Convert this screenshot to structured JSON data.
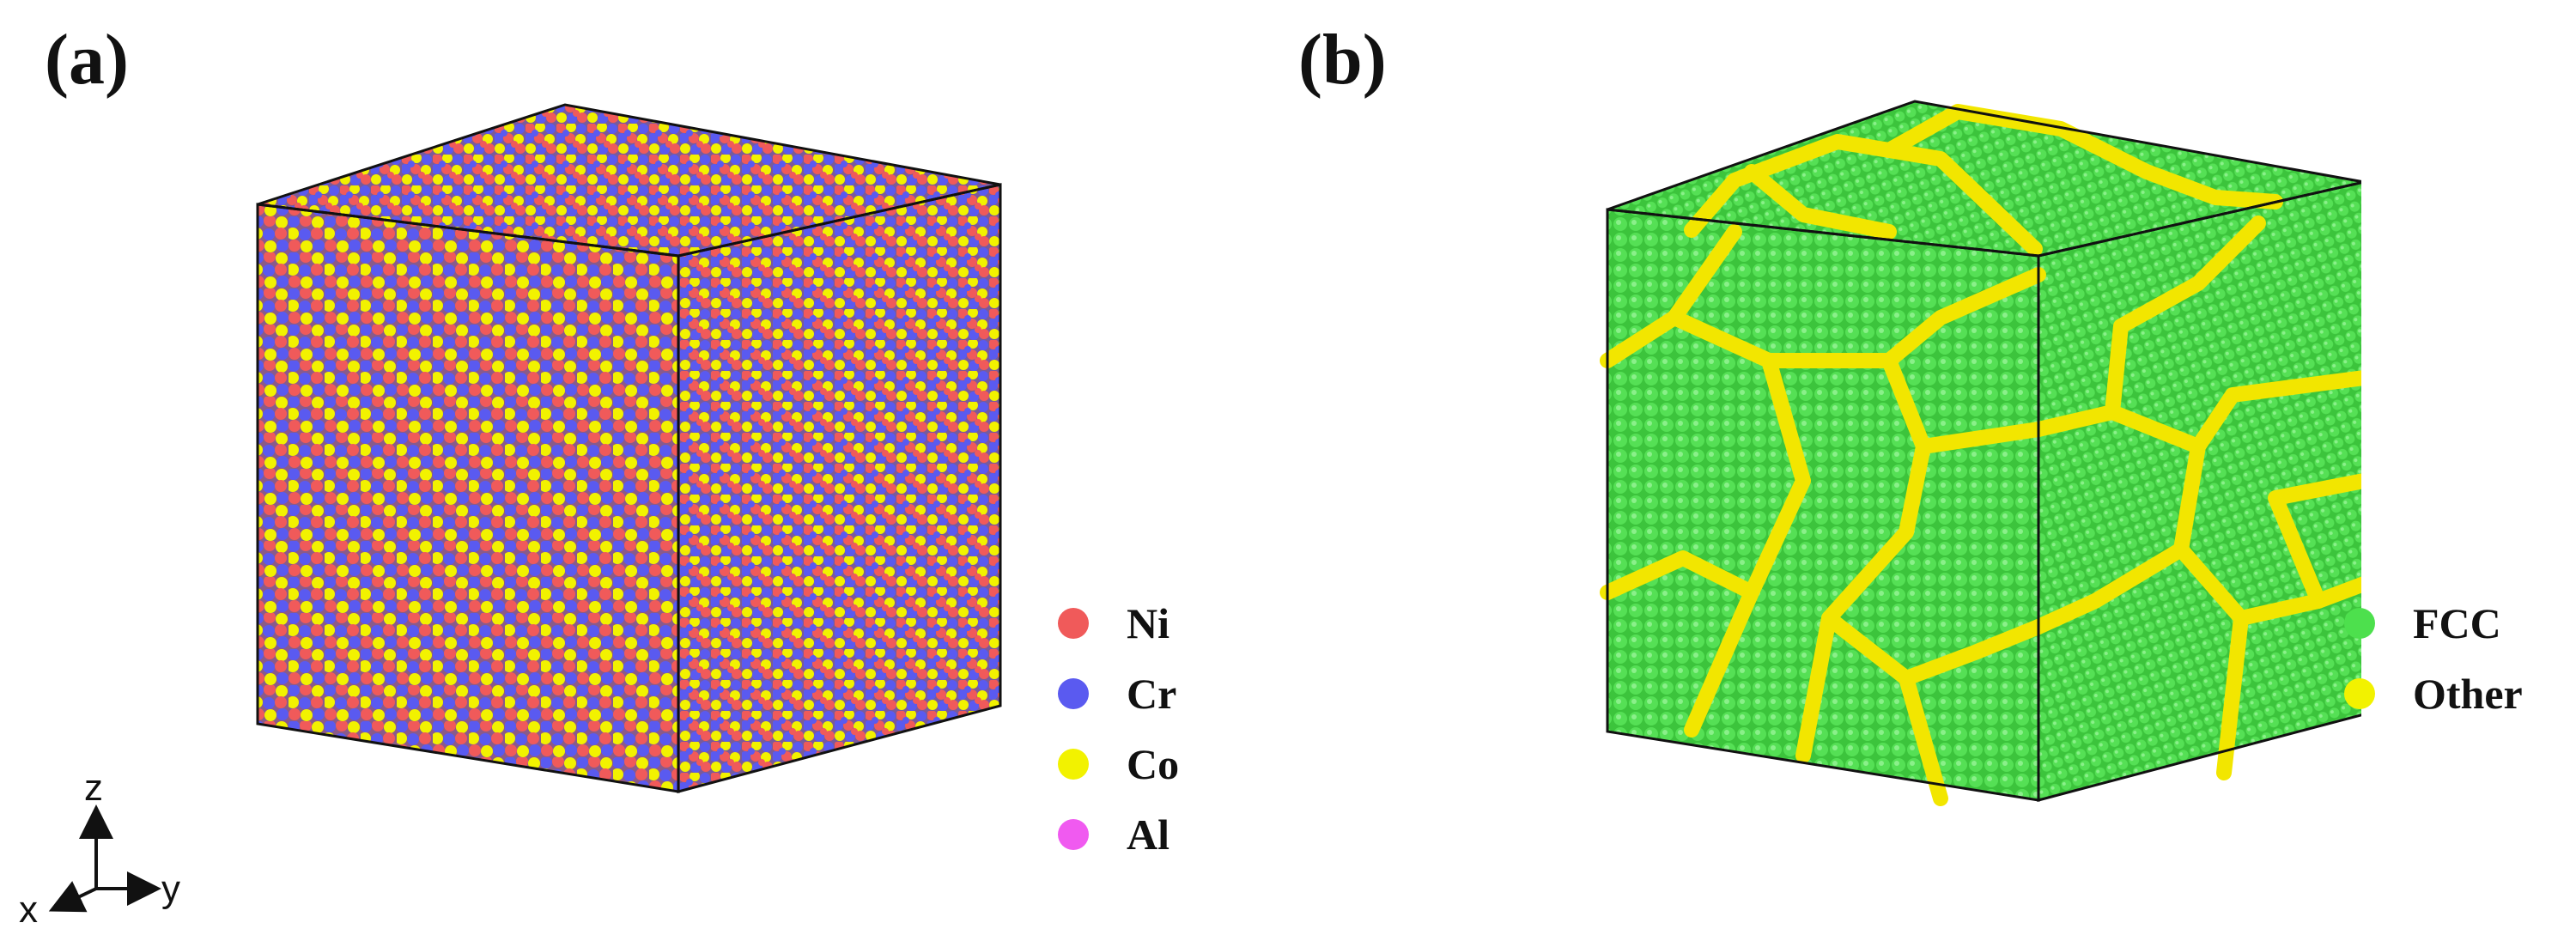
{
  "panels": {
    "a": {
      "label": "(a)",
      "legend": [
        {
          "name": "Ni",
          "color": "#f05a5a"
        },
        {
          "name": "Cr",
          "color": "#5a5af0"
        },
        {
          "name": "Co",
          "color": "#f2f200"
        },
        {
          "name": "Al",
          "color": "#f05af0"
        }
      ]
    },
    "b": {
      "label": "(b)",
      "legend": [
        {
          "name": "FCC",
          "color": "#4de04d"
        },
        {
          "name": "Other",
          "color": "#f2f200"
        }
      ]
    }
  },
  "axes": {
    "z": "z",
    "x": "x",
    "y": "y"
  },
  "colors": {
    "fcc": "#4de04d",
    "fcc_dark": "#2fa82f",
    "boundary": "#f2e600",
    "ni": "#f05a5a",
    "cr": "#5a5af0",
    "co": "#f2f200",
    "edge": "#111111"
  }
}
